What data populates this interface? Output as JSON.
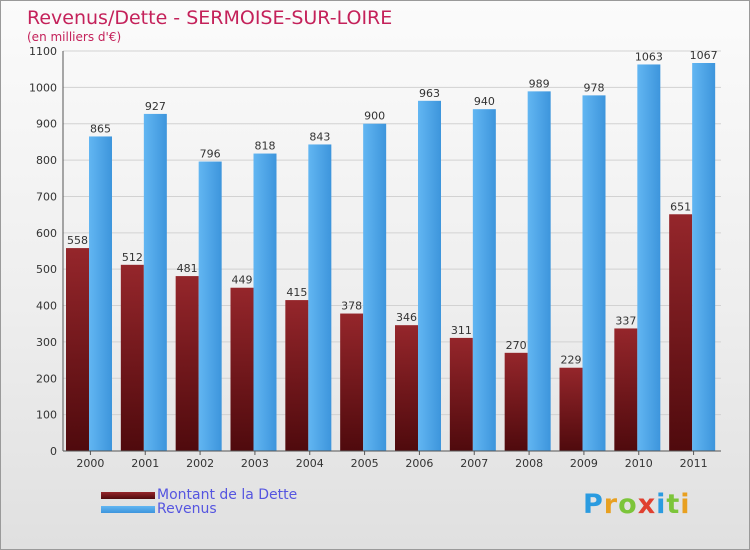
{
  "header": {
    "title": "Revenus/Dette - SERMOISE-SUR-LOIRE",
    "subtitle": "(en milliers d'€)"
  },
  "legend": [
    {
      "label": "Montant de la Dette",
      "color": "#7a1a1e"
    },
    {
      "label": "Revenus",
      "color": "#4ea6e6"
    }
  ],
  "logo": {
    "letters": [
      "P",
      "r",
      "o",
      "x",
      "i",
      "t",
      "i"
    ],
    "colors": [
      "#2a9be0",
      "#e8a020",
      "#7cc53a",
      "#e04030",
      "#2a9be0",
      "#7cc53a",
      "#e8a020"
    ]
  },
  "chart_data": {
    "type": "bar",
    "title": "Revenus/Dette - SERMOISE-SUR-LOIRE",
    "ylabel": "(en milliers d'€)",
    "categories": [
      "2000",
      "2001",
      "2002",
      "2003",
      "2004",
      "2005",
      "2006",
      "2007",
      "2008",
      "2009",
      "2010",
      "2011"
    ],
    "series": [
      {
        "name": "Montant de la Dette",
        "color": "#7a1a1e",
        "values": [
          558,
          512,
          481,
          449,
          415,
          378,
          346,
          311,
          270,
          229,
          337,
          651
        ]
      },
      {
        "name": "Revenus",
        "color": "#4ea6e6",
        "values": [
          865,
          927,
          796,
          818,
          843,
          900,
          963,
          940,
          989,
          978,
          1063,
          1067
        ]
      }
    ],
    "ylim": [
      0,
      1100
    ],
    "yticks": [
      0,
      100,
      200,
      300,
      400,
      500,
      600,
      700,
      800,
      900,
      1000,
      1100
    ],
    "grid": true,
    "legend_position": "bottom-left"
  }
}
